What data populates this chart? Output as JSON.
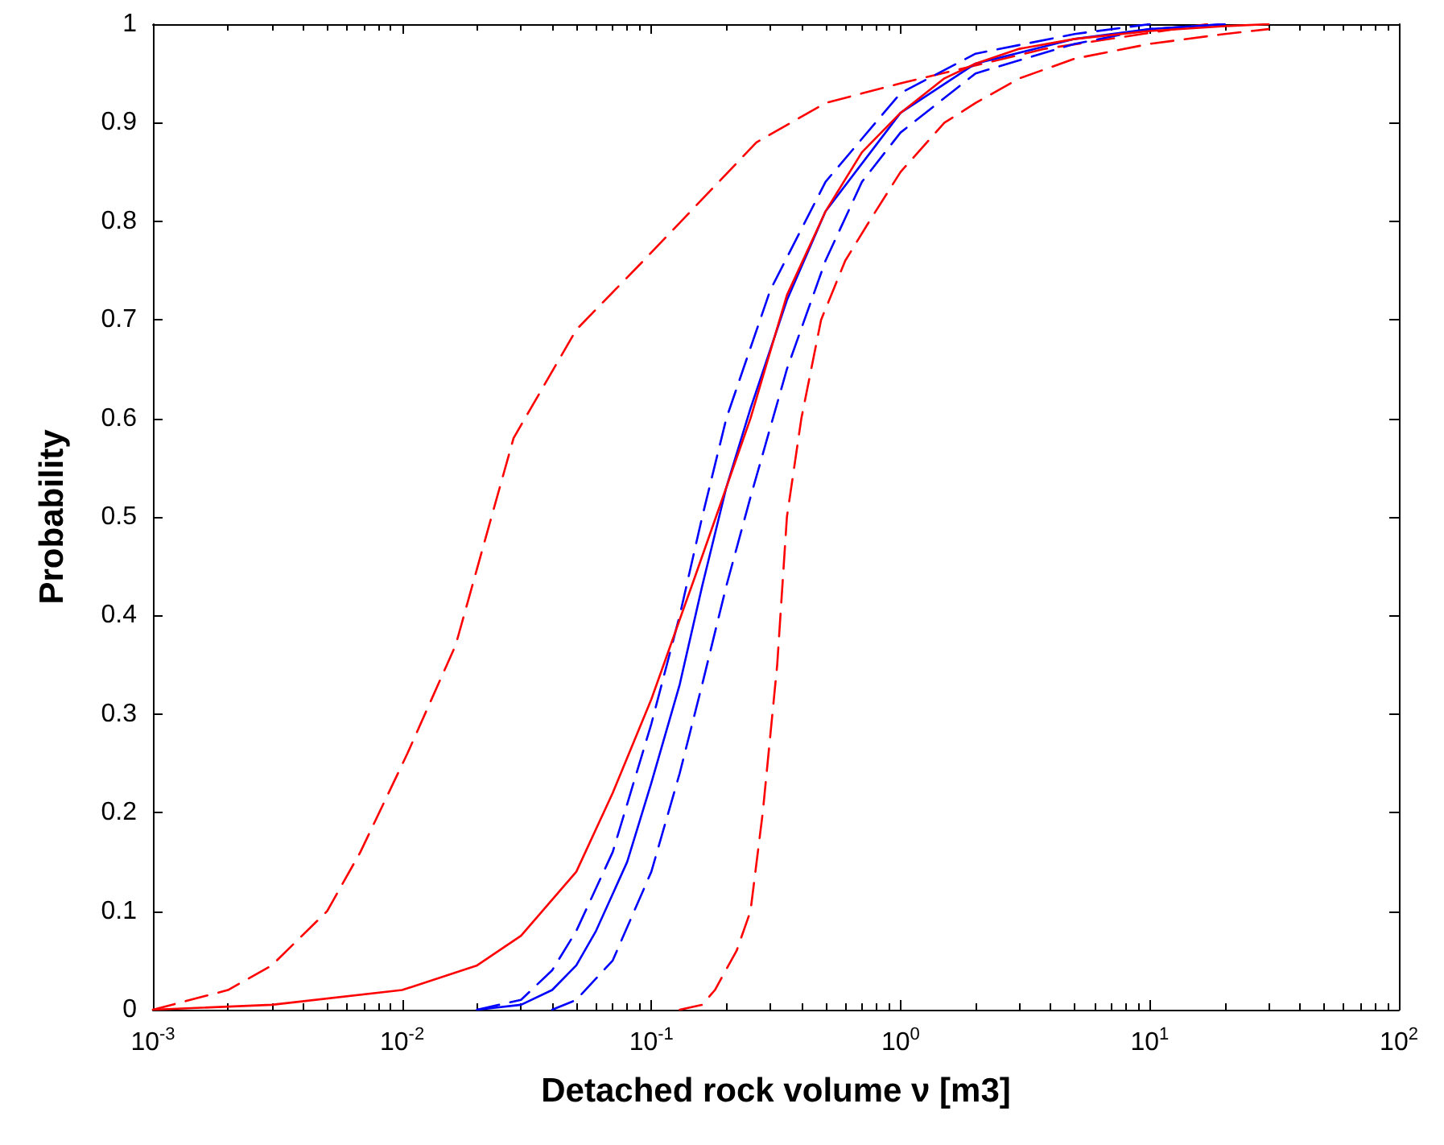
{
  "chart_data": {
    "type": "line",
    "xlabel": "Detached rock volume ν [m3]",
    "ylabel": "Probability",
    "log": "x",
    "grid": false,
    "marker": "none",
    "xlim": [
      0.001,
      100
    ],
    "xticks": [
      {
        "value": 0.001,
        "label": "10$^{-3}$"
      },
      {
        "value": 0.01,
        "label": "10$^{-2}$"
      },
      {
        "value": 0.1,
        "label": "10$^{-1}$"
      },
      {
        "value": 1,
        "label": "10$^{0}$"
      },
      {
        "value": 10,
        "label": "10$^{1}$"
      },
      {
        "value": 100,
        "label": "10$^{2}$"
      }
    ],
    "ylim": [
      0,
      1
    ],
    "yticks": [
      0,
      0.1,
      0.2,
      0.3,
      0.4,
      0.5,
      0.6,
      0.7,
      0.8,
      0.9,
      1
    ],
    "series": [
      {
        "color": "#ff0000",
        "line_style": "dashed",
        "x": [
          0.001,
          0.002,
          0.003,
          0.005,
          0.0068,
          0.0105,
          0.0164,
          0.028,
          0.05,
          0.093,
          0.264,
          0.5,
          1,
          3.8,
          17
        ],
        "values": [
          0,
          0.02,
          0.045,
          0.1,
          0.16,
          0.26,
          0.37,
          0.58,
          0.69,
          0.76,
          0.88,
          0.92,
          0.94,
          0.975,
          1
        ]
      },
      {
        "color": "#ff0000",
        "line_style": "dashed",
        "x": [
          0.13,
          0.16,
          0.18,
          0.22,
          0.25,
          0.28,
          0.32,
          0.35,
          0.4,
          0.48,
          0.6,
          0.75,
          1,
          1.5,
          2,
          3,
          5,
          10,
          20,
          30
        ],
        "values": [
          0,
          0.005,
          0.02,
          0.06,
          0.1,
          0.2,
          0.35,
          0.5,
          0.6,
          0.7,
          0.76,
          0.8,
          0.85,
          0.9,
          0.92,
          0.945,
          0.965,
          0.98,
          0.99,
          0.995
        ]
      },
      {
        "color": "#0000ff",
        "line_style": "dashed",
        "x": [
          0.02,
          0.03,
          0.04,
          0.05,
          0.07,
          0.1,
          0.13,
          0.16,
          0.2,
          0.3,
          0.5,
          1,
          2,
          5,
          10
        ],
        "values": [
          0,
          0.01,
          0.04,
          0.08,
          0.16,
          0.29,
          0.4,
          0.5,
          0.6,
          0.73,
          0.84,
          0.93,
          0.97,
          0.99,
          1
        ]
      },
      {
        "color": "#0000ff",
        "line_style": "dashed",
        "x": [
          0.04,
          0.05,
          0.07,
          0.1,
          0.13,
          0.16,
          0.2,
          0.25,
          0.35,
          0.5,
          0.7,
          1,
          2,
          5,
          10,
          20
        ],
        "values": [
          0,
          0.01,
          0.05,
          0.14,
          0.24,
          0.33,
          0.43,
          0.52,
          0.65,
          0.76,
          0.84,
          0.89,
          0.95,
          0.98,
          0.995,
          1
        ]
      },
      {
        "color": "#0000ff",
        "line_style": "solid",
        "x": [
          0.02,
          0.03,
          0.04,
          0.05,
          0.06,
          0.08,
          0.1,
          0.13,
          0.16,
          0.2,
          0.25,
          0.35,
          0.5,
          1,
          2,
          5,
          10,
          20
        ],
        "values": [
          0,
          0.005,
          0.02,
          0.045,
          0.08,
          0.15,
          0.23,
          0.33,
          0.43,
          0.53,
          0.61,
          0.72,
          0.81,
          0.91,
          0.96,
          0.985,
          0.995,
          1
        ]
      },
      {
        "color": "#ff0000",
        "line_style": "solid",
        "x": [
          0.001,
          0.003,
          0.01,
          0.02,
          0.03,
          0.05,
          0.07,
          0.1,
          0.15,
          0.2,
          0.25,
          0.35,
          0.5,
          0.7,
          1,
          1.5,
          2,
          3,
          5,
          10,
          20,
          30
        ],
        "values": [
          0,
          0.005,
          0.02,
          0.045,
          0.075,
          0.14,
          0.22,
          0.315,
          0.44,
          0.53,
          0.6,
          0.725,
          0.81,
          0.87,
          0.91,
          0.945,
          0.96,
          0.975,
          0.985,
          0.993,
          0.998,
          1
        ]
      }
    ]
  }
}
